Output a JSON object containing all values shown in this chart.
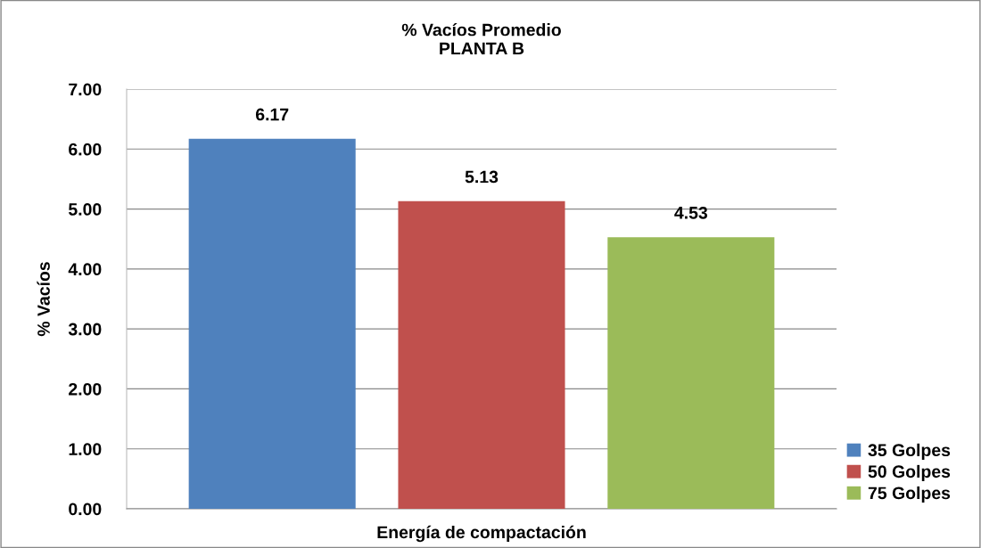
{
  "chart_data": {
    "type": "bar",
    "title": "% Vacíos Promedio\nPLANTA B",
    "xlabel": "Energía de compactación",
    "ylabel": "% Vacíos",
    "categories": [
      null
    ],
    "series": [
      {
        "name": "35 Golpes",
        "color": "#4f81bd",
        "values": [
          6.17
        ]
      },
      {
        "name": "50 Golpes",
        "color": "#c0504d",
        "values": [
          5.13
        ]
      },
      {
        "name": "75 Golpes",
        "color": "#9bbb59",
        "values": [
          4.53
        ]
      }
    ],
    "ylim": [
      0,
      7
    ],
    "yticks": [
      {
        "value": 0,
        "label": "0.00"
      },
      {
        "value": 1,
        "label": "1.00"
      },
      {
        "value": 2,
        "label": "2.00"
      },
      {
        "value": 3,
        "label": "3.00"
      },
      {
        "value": 4,
        "label": "4.00"
      },
      {
        "value": 5,
        "label": "5.00"
      },
      {
        "value": 6,
        "label": "6.00"
      },
      {
        "value": 7,
        "label": "7.00"
      }
    ],
    "grid": "y",
    "legend": "bottom right",
    "data_labels": true
  }
}
